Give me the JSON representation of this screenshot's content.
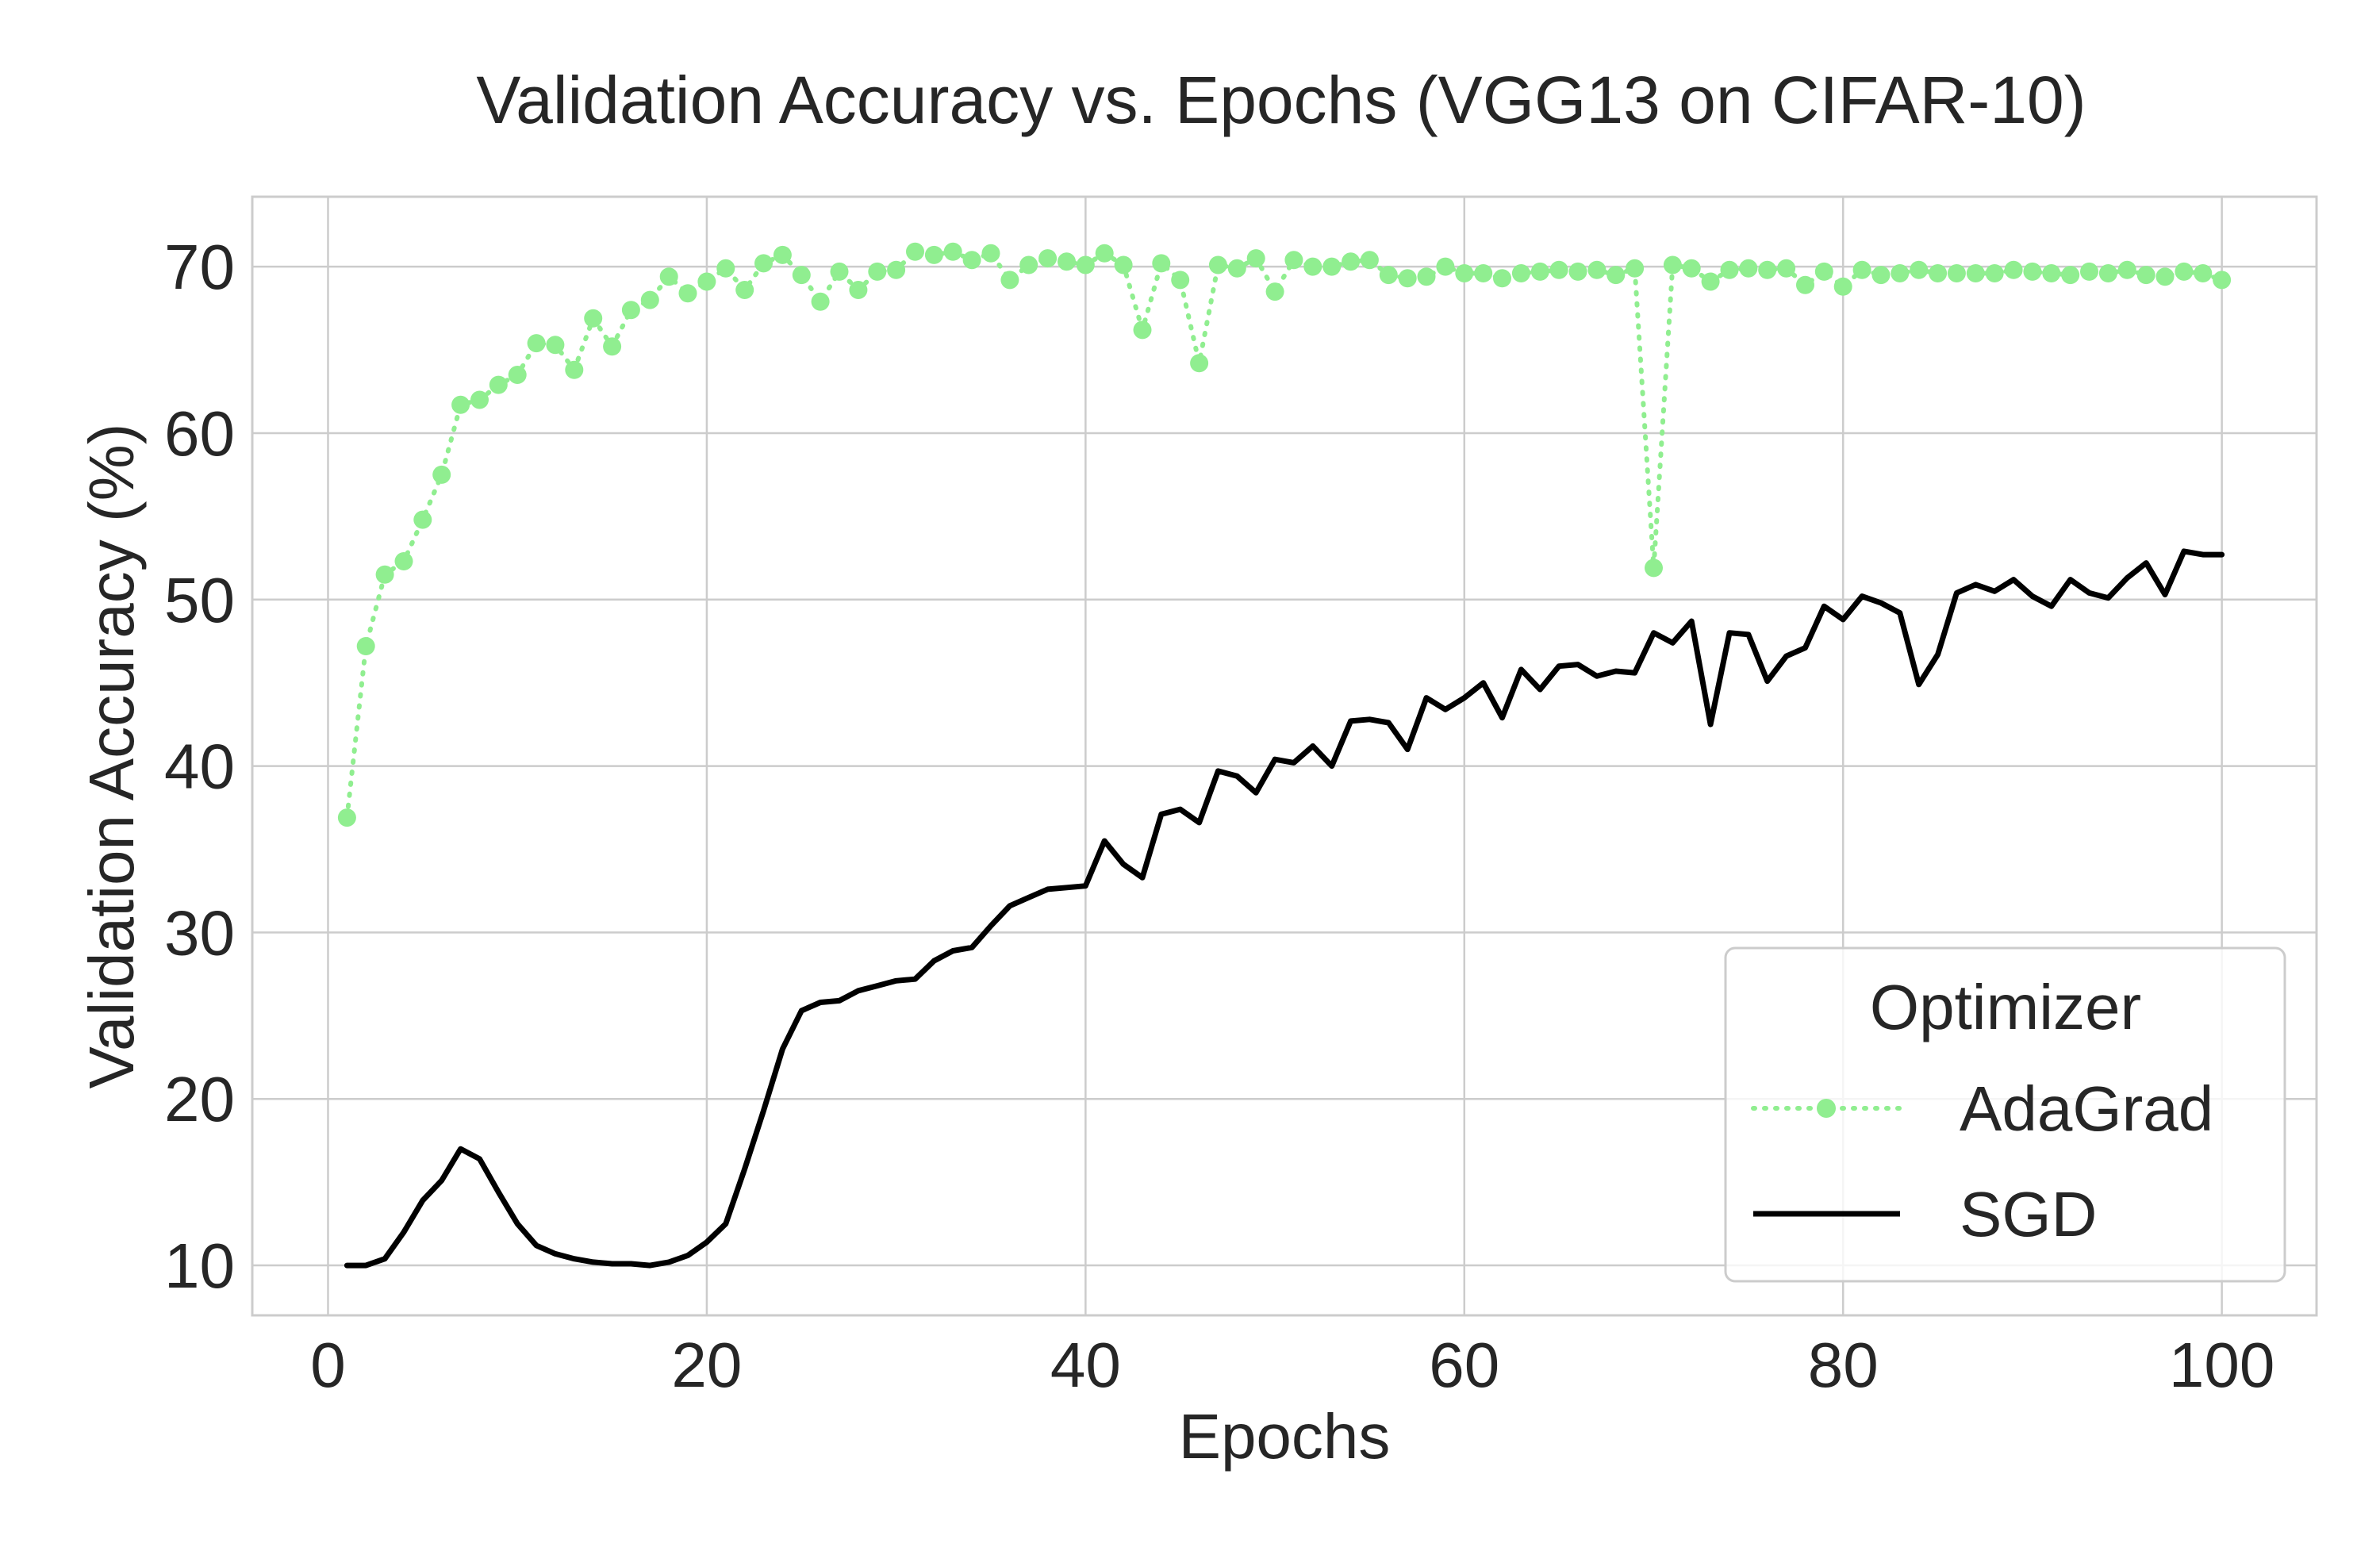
{
  "chart_data": {
    "type": "line",
    "title": "Validation Accuracy vs. Epochs (VGG13 on CIFAR-10)",
    "xlabel": "Epochs",
    "ylabel": "Validation Accuracy (%)",
    "xlim": [
      -4,
      105
    ],
    "ylim": [
      7,
      74.2
    ],
    "xticks": [
      0,
      20,
      40,
      60,
      80,
      100
    ],
    "yticks": [
      10,
      20,
      30,
      40,
      50,
      60,
      70
    ],
    "grid": true,
    "legend": {
      "title": "Optimizer",
      "placement": "lower-right"
    },
    "x": [
      1,
      2,
      3,
      4,
      5,
      6,
      7,
      8,
      9,
      10,
      11,
      12,
      13,
      14,
      15,
      16,
      17,
      18,
      19,
      20,
      21,
      22,
      23,
      24,
      25,
      26,
      27,
      28,
      29,
      30,
      31,
      32,
      33,
      34,
      35,
      36,
      37,
      38,
      39,
      40,
      41,
      42,
      43,
      44,
      45,
      46,
      47,
      48,
      49,
      50,
      51,
      52,
      53,
      54,
      55,
      56,
      57,
      58,
      59,
      60,
      61,
      62,
      63,
      64,
      65,
      66,
      67,
      68,
      69,
      70,
      71,
      72,
      73,
      74,
      75,
      76,
      77,
      78,
      79,
      80,
      81,
      82,
      83,
      84,
      85,
      86,
      87,
      88,
      89,
      90,
      91,
      92,
      93,
      94,
      95,
      96,
      97,
      98,
      99,
      100
    ],
    "series": [
      {
        "name": "AdaGrad",
        "color": "#90ee90",
        "style": "dotted-with-markers",
        "values": [
          36.9,
          47.2,
          51.5,
          52.3,
          54.8,
          57.5,
          61.7,
          62.0,
          62.9,
          63.5,
          65.4,
          65.3,
          63.8,
          66.9,
          65.2,
          67.4,
          68.0,
          69.4,
          68.4,
          69.1,
          69.9,
          68.6,
          70.2,
          70.7,
          69.5,
          67.9,
          69.7,
          68.6,
          69.7,
          69.8,
          70.9,
          70.7,
          70.9,
          70.4,
          70.8,
          69.2,
          70.1,
          70.5,
          70.3,
          70.1,
          70.8,
          70.1,
          66.2,
          70.2,
          69.2,
          64.2,
          70.1,
          69.9,
          70.5,
          68.5,
          70.4,
          70.0,
          70.0,
          70.3,
          70.4,
          69.5,
          69.3,
          69.4,
          70.0,
          69.6,
          69.6,
          69.3,
          69.6,
          69.7,
          69.8,
          69.7,
          69.8,
          69.5,
          69.9,
          51.9,
          70.1,
          69.9,
          69.1,
          69.8,
          69.9,
          69.8,
          69.9,
          68.9,
          69.7,
          68.8,
          69.8,
          69.5,
          69.6,
          69.8,
          69.6,
          69.6,
          69.6,
          69.6,
          69.8,
          69.7,
          69.6,
          69.5,
          69.7,
          69.6,
          69.8,
          69.5,
          69.4,
          69.7,
          69.6,
          69.2
        ]
      },
      {
        "name": "SGD",
        "color": "#000000",
        "style": "solid",
        "values": [
          10.0,
          10.0,
          10.4,
          12.0,
          13.9,
          15.1,
          17.0,
          16.4,
          14.4,
          12.5,
          11.2,
          10.7,
          10.4,
          10.2,
          10.1,
          10.1,
          10.0,
          10.2,
          10.6,
          11.4,
          12.5,
          15.8,
          19.3,
          23.0,
          25.3,
          25.8,
          25.9,
          26.5,
          26.8,
          27.1,
          27.2,
          28.3,
          28.9,
          29.1,
          30.4,
          31.6,
          32.1,
          32.6,
          32.7,
          32.8,
          35.5,
          34.1,
          33.3,
          37.1,
          37.4,
          36.6,
          39.7,
          39.4,
          38.4,
          40.4,
          40.2,
          41.2,
          40.0,
          42.7,
          42.8,
          42.6,
          41.0,
          44.1,
          43.4,
          44.1,
          45.0,
          42.9,
          45.8,
          44.6,
          46.0,
          46.1,
          45.4,
          45.7,
          45.6,
          48.0,
          47.4,
          48.7,
          42.5,
          48.0,
          47.9,
          45.1,
          46.6,
          47.1,
          49.6,
          48.8,
          50.2,
          49.8,
          49.2,
          44.9,
          46.7,
          50.4,
          50.9,
          50.5,
          51.2,
          50.2,
          49.6,
          51.2,
          50.4,
          50.1,
          51.3,
          52.2,
          50.3,
          52.9,
          52.7,
          52.7
        ]
      }
    ]
  }
}
